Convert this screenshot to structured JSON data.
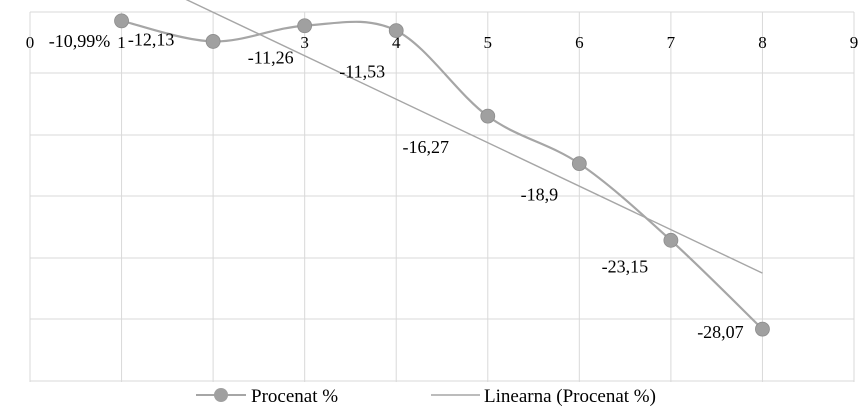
{
  "chart_data": {
    "type": "scatter",
    "x_ticks": [
      "0",
      "1",
      "2",
      "3",
      "4",
      "5",
      "6",
      "7",
      "8",
      "9"
    ],
    "xlim": [
      0,
      9
    ],
    "ylim": [
      -31,
      -10.5
    ],
    "grid": true,
    "legend_position": "bottom",
    "series": [
      {
        "name": "Procenat %",
        "style": "smooth-line-with-markers",
        "x": [
          1,
          2,
          3,
          4,
          5,
          6,
          7,
          8
        ],
        "y": [
          -10.99,
          -12.13,
          -11.26,
          -11.53,
          -16.27,
          -18.9,
          -23.15,
          -28.07
        ],
        "labels": [
          "-10,99%",
          "-12,13",
          "-11,26",
          "-11,53",
          "-16,27",
          "-18,9",
          "-23,15",
          "-28,07"
        ]
      },
      {
        "name": "Linearna (Procenat %)",
        "style": "trendline"
      }
    ],
    "colors": {
      "series": "#a6a6a6",
      "marker": "#a0a0a0",
      "trend": "#a6a6a6",
      "grid": "#d9d9d9"
    }
  }
}
